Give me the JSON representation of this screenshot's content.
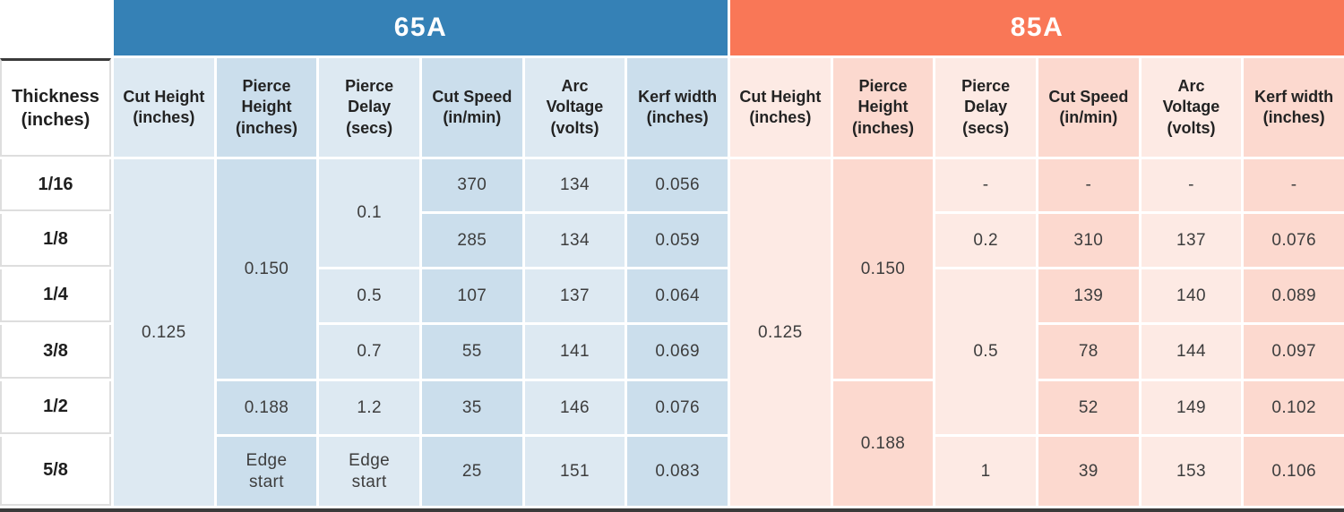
{
  "colors": {
    "banner_blue": "#3581b6",
    "banner_orange": "#f97757",
    "blue_light": "#dde9f2",
    "blue_dark": "#cbdeec",
    "pink_light": "#fdeae4",
    "pink_dark": "#fcd9cf",
    "text_head": "#232323",
    "text_data": "#3d3d3d",
    "line_gray": "#dedede",
    "bar_dark": "#3a3a3a"
  },
  "chart_data": {
    "type": "table",
    "row_header": "Thickness (inches)",
    "row_labels": [
      "1/16",
      "1/8",
      "1/4",
      "3/8",
      "1/2",
      "5/8"
    ],
    "column_headers": [
      "Cut Height (inches)",
      "Pierce Height (inches)",
      "Pierce Delay (secs)",
      "Cut Speed (in/min)",
      "Arc Voltage (volts)",
      "Kerf width (inches)"
    ],
    "sections": [
      {
        "label": "65A",
        "cells": {
          "cut_height_all": "0.125",
          "pierce_height_top4": "0.150",
          "pierce_height_half": "0.188",
          "pierce_height_58": "Edge start",
          "pierce_delay_top2": "0.1",
          "pierce_delay_14": "0.5",
          "pierce_delay_38": "0.7",
          "pierce_delay_12": "1.2",
          "pierce_delay_58": "Edge start",
          "cut_speed": [
            "370",
            "285",
            "107",
            "55",
            "35",
            "25"
          ],
          "arc_voltage": [
            "134",
            "134",
            "137",
            "141",
            "146",
            "151"
          ],
          "kerf_width": [
            "0.056",
            "0.059",
            "0.064",
            "0.069",
            "0.076",
            "0.083"
          ]
        }
      },
      {
        "label": "85A",
        "cells": {
          "cut_height_all": "0.125",
          "pierce_height_top4": "0.150",
          "pierce_height_bottom2": "0.188",
          "pierce_delay_116": "-",
          "pierce_delay_18": "0.2",
          "pierce_delay_mid3": "0.5",
          "pierce_delay_58": "1",
          "cut_speed": [
            "-",
            "310",
            "139",
            "78",
            "52",
            "39"
          ],
          "arc_voltage": [
            "-",
            "137",
            "140",
            "144",
            "149",
            "153"
          ],
          "kerf_width": [
            "-",
            "0.076",
            "0.089",
            "0.097",
            "0.102",
            "0.106"
          ]
        }
      }
    ]
  }
}
